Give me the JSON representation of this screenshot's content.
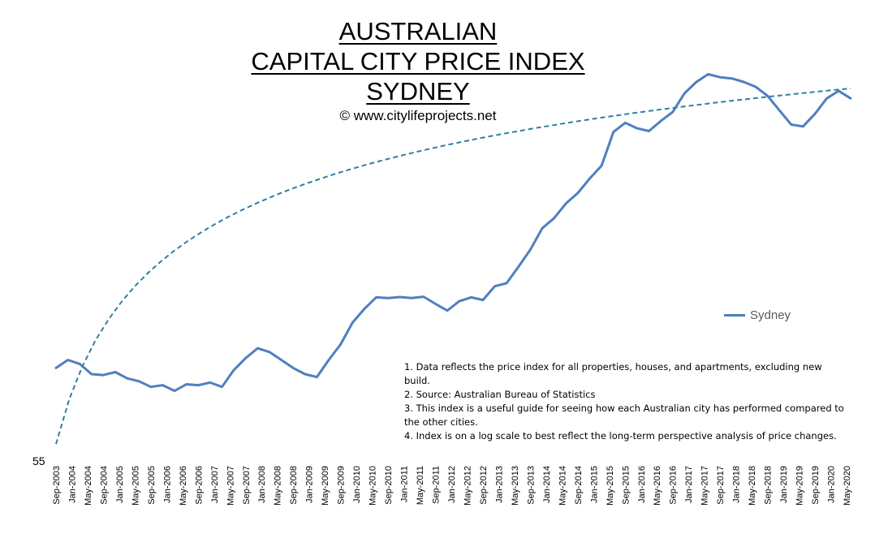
{
  "title": {
    "line1": "AUSTRALIAN",
    "line2": "CAPITAL CITY PRICE INDEX",
    "line3": "SYDNEY"
  },
  "copyright": "© www.citylifeprojects.net",
  "legend": {
    "label": "Sydney"
  },
  "notes": [
    "1.  Data reflects the price index for all properties, houses, and apartments, excluding new build.",
    "2.  Source:   Australian Bureau of Statistics",
    "3.  This index is a useful guide for seeing how each Australian city has performed compared to the other cities.",
    "4.  Index is on a log scale to best reflect the long-term perspective analysis of price changes."
  ],
  "chart_data": {
    "type": "line",
    "yscale": "log",
    "y_tick_labels": [
      "55"
    ],
    "x_tick_labels": [
      "Sep-2003",
      "Jan-2004",
      "May-2004",
      "Sep-2004",
      "Jan-2005",
      "May-2005",
      "Sep-2005",
      "Jan-2006",
      "May-2006",
      "Sep-2006",
      "Jan-2007",
      "May-2007",
      "Sep-2007",
      "Jan-2008",
      "May-2008",
      "Sep-2008",
      "Jan-2009",
      "May-2009",
      "Sep-2009",
      "Jan-2010",
      "May-2010",
      "Sep-2010",
      "Jan-2011",
      "May-2011",
      "Sep-2011",
      "Jan-2012",
      "May-2012",
      "Sep-2012",
      "Jan-2013",
      "May-2013",
      "Sep-2013",
      "Jan-2014",
      "May-2014",
      "Sep-2014",
      "Jan-2015",
      "May-2015",
      "Sep-2015",
      "Jan-2016",
      "May-2016",
      "Sep-2016",
      "Jan-2017",
      "May-2017",
      "Sep-2017",
      "Jan-2018",
      "May-2018",
      "Sep-2018",
      "Jan-2019",
      "May-2019",
      "Sep-2019",
      "Jan-2020",
      "May-2020"
    ],
    "series": [
      {
        "name": "Sydney",
        "color": "#4f7fbf",
        "style": "solid",
        "x": [
          "Sep-2003",
          "Dec-2003",
          "Mar-2004",
          "Jun-2004",
          "Sep-2004",
          "Dec-2004",
          "Mar-2005",
          "Jun-2005",
          "Sep-2005",
          "Dec-2005",
          "Mar-2006",
          "Jun-2006",
          "Sep-2006",
          "Dec-2006",
          "Mar-2007",
          "Jun-2007",
          "Sep-2007",
          "Dec-2007",
          "Mar-2008",
          "Jun-2008",
          "Sep-2008",
          "Dec-2008",
          "Mar-2009",
          "Jun-2009",
          "Sep-2009",
          "Dec-2009",
          "Mar-2010",
          "Jun-2010",
          "Sep-2010",
          "Dec-2010",
          "Mar-2011",
          "Jun-2011",
          "Sep-2011",
          "Dec-2011",
          "Mar-2012",
          "Jun-2012",
          "Sep-2012",
          "Dec-2012",
          "Mar-2013",
          "Jun-2013",
          "Sep-2013",
          "Dec-2013",
          "Mar-2014",
          "Jun-2014",
          "Sep-2014",
          "Dec-2014",
          "Mar-2015",
          "Jun-2015",
          "Sep-2015",
          "Dec-2015",
          "Mar-2016",
          "Jun-2016",
          "Sep-2016",
          "Dec-2016",
          "Mar-2017",
          "Jun-2017",
          "Sep-2017",
          "Dec-2017",
          "Mar-2018",
          "Jun-2018",
          "Sep-2018",
          "Dec-2018",
          "Mar-2019",
          "Jun-2019",
          "Sep-2019",
          "Dec-2019",
          "Mar-2020",
          "Jun-2020"
        ],
        "values": [
          74.5,
          76.5,
          75.5,
          73.0,
          72.8,
          73.5,
          72.0,
          71.3,
          70.0,
          70.4,
          69.1,
          70.6,
          70.4,
          71.0,
          70.0,
          74.0,
          77.0,
          79.5,
          78.5,
          76.5,
          74.5,
          73.0,
          72.3,
          76.5,
          80.5,
          86.5,
          90.5,
          94.0,
          93.8,
          94.1,
          93.8,
          94.2,
          92.0,
          90.0,
          92.8,
          94.0,
          93.2,
          97.5,
          98.5,
          104.0,
          110.0,
          118.0,
          122.0,
          128.0,
          132.5,
          139.0,
          145.0,
          162.0,
          167.0,
          164.0,
          162.5,
          168.0,
          173.0,
          184.0,
          191.0,
          196.0,
          194.0,
          193.2,
          191.0,
          188.0,
          182.5,
          174.0,
          166.0,
          165.0,
          172.0,
          181.0,
          185.5,
          181.0
        ]
      },
      {
        "name": "",
        "color": "#2f7f9f",
        "style": "dashed",
        "trend": "logarithmic",
        "x": [
          "Sep-2003",
          "Jun-2020"
        ],
        "values": [
          58.0,
          187.0
        ]
      }
    ]
  }
}
